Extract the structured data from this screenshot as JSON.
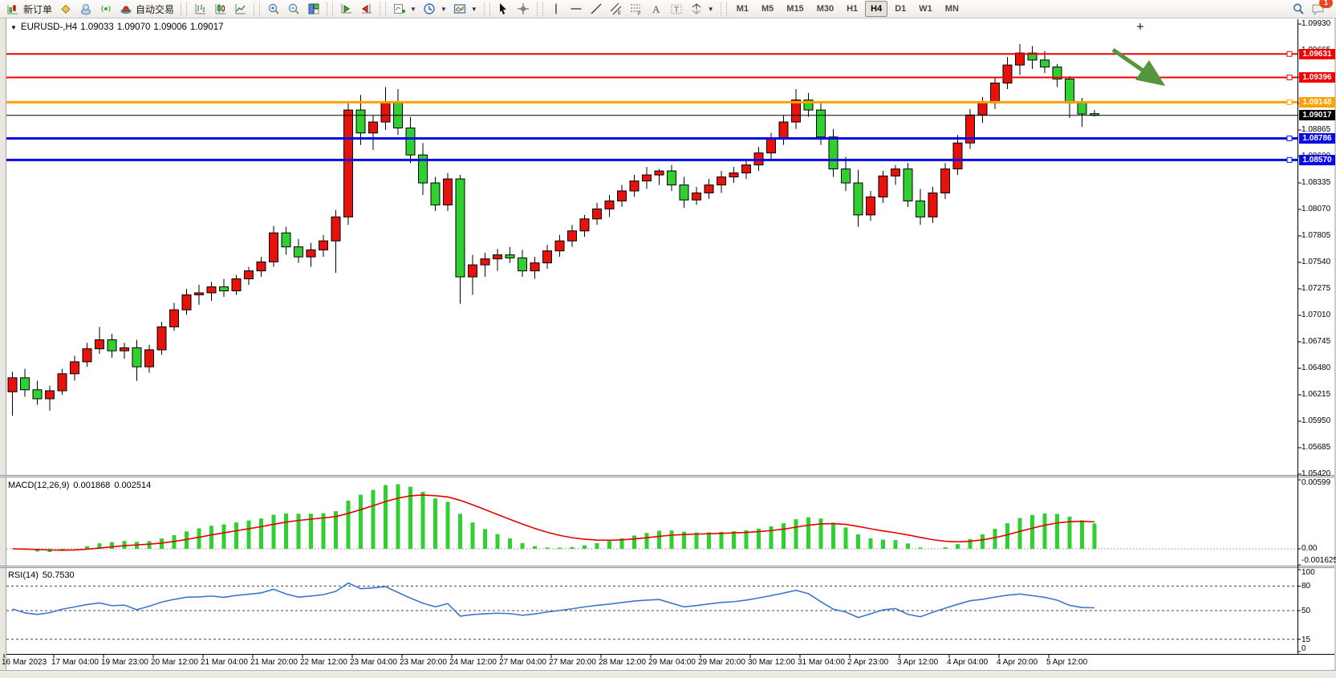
{
  "toolbar": {
    "new_order": "新订单",
    "auto_trading": "自动交易",
    "timeframes": [
      "M1",
      "M5",
      "M15",
      "M30",
      "H1",
      "H4",
      "D1",
      "W1",
      "MN"
    ],
    "active_timeframe": "H4",
    "notification_badge": "1",
    "icon_names": [
      "new-order-chart-icon",
      "market-watch-icon",
      "navigator-icon",
      "signals-icon",
      "autotrading-hat-icon",
      "bar-chart-icon",
      "candlestick-chart-icon",
      "line-chart-icon",
      "zoom-in-icon",
      "zoom-out-icon",
      "tile-windows-icon",
      "auto-scroll-icon",
      "chart-shift-icon",
      "add-indicator-icon",
      "periods-icon",
      "template-icon",
      "cursor-icon",
      "crosshair-icon",
      "vertical-line-icon",
      "horizontal-line-icon",
      "trendline-icon",
      "equidistant-channel-icon",
      "fibonacci-icon",
      "text-icon",
      "text-label-icon",
      "arrows-icon",
      "search-icon",
      "chat-icon"
    ]
  },
  "chart": {
    "title": "EURUSD-,H4",
    "open": "1.09033",
    "high": "1.09070",
    "low": "1.09006",
    "close": "1.09017"
  },
  "chart_data": {
    "type": "candlestick",
    "symbol": "EURUSD-",
    "timeframe": "H4",
    "bull_color": "#e8120c",
    "bear_color": "#2fd02f",
    "wick_color": "#000000",
    "price_axis": {
      "max": 1.0993,
      "min": 1.0542,
      "tick_step": 0.00265,
      "ticks": [
        "1.09930",
        "1.09665",
        "1.09400",
        "1.09135",
        "1.08865",
        "1.08600",
        "1.08335",
        "1.08070",
        "1.07805",
        "1.07540",
        "1.07275",
        "1.07010",
        "1.06745",
        "1.06480",
        "1.06215",
        "1.05950",
        "1.05685",
        "1.05420"
      ]
    },
    "x_labels": [
      "16 Mar 2023",
      "17 Mar 04:00",
      "19 Mar 23:00",
      "20 Mar 12:00",
      "21 Mar 04:00",
      "21 Mar 20:00",
      "22 Mar 12:00",
      "23 Mar 04:00",
      "23 Mar 20:00",
      "24 Mar 12:00",
      "27 Mar 04:00",
      "27 Mar 20:00",
      "28 Mar 12:00",
      "29 Mar 04:00",
      "29 Mar 20:00",
      "30 Mar 12:00",
      "31 Mar 04:00",
      "2 Apr 23:00",
      "3 Apr 12:00",
      "4 Apr 04:00",
      "4 Apr 20:00",
      "5 Apr 12:00"
    ],
    "candles": [
      [
        1.0625,
        1.0645,
        1.0601,
        1.0639
      ],
      [
        1.0639,
        1.0648,
        1.062,
        1.0627
      ],
      [
        1.0627,
        1.0636,
        1.0612,
        1.0618
      ],
      [
        1.0618,
        1.0631,
        1.0606,
        1.0626
      ],
      [
        1.0626,
        1.0648,
        1.0622,
        1.0643
      ],
      [
        1.0643,
        1.0661,
        1.0636,
        1.0655
      ],
      [
        1.0655,
        1.0674,
        1.065,
        1.0668
      ],
      [
        1.0668,
        1.069,
        1.0663,
        1.0677
      ],
      [
        1.0677,
        1.0683,
        1.0659,
        1.0666
      ],
      [
        1.0666,
        1.0674,
        1.0658,
        1.0669
      ],
      [
        1.0669,
        1.0677,
        1.0636,
        1.065
      ],
      [
        1.065,
        1.0672,
        1.0644,
        1.0667
      ],
      [
        1.0667,
        1.0695,
        1.0662,
        1.069
      ],
      [
        1.069,
        1.0714,
        1.0686,
        1.0707
      ],
      [
        1.0707,
        1.0728,
        1.0702,
        1.0722
      ],
      [
        1.0722,
        1.0732,
        1.0712,
        1.0724
      ],
      [
        1.0724,
        1.0735,
        1.0716,
        1.073
      ],
      [
        1.073,
        1.0738,
        1.072,
        1.0726
      ],
      [
        1.0726,
        1.0742,
        1.0722,
        1.0738
      ],
      [
        1.0738,
        1.075,
        1.0732,
        1.0746
      ],
      [
        1.0746,
        1.076,
        1.074,
        1.0755
      ],
      [
        1.0755,
        1.0791,
        1.075,
        1.0784
      ],
      [
        1.0784,
        1.079,
        1.0762,
        1.077
      ],
      [
        1.077,
        1.0778,
        1.0754,
        1.076
      ],
      [
        1.076,
        1.0774,
        1.075,
        1.0767
      ],
      [
        1.0767,
        1.0782,
        1.076,
        1.0776
      ],
      [
        1.0776,
        1.0807,
        1.0744,
        1.08
      ],
      [
        1.08,
        1.0914,
        1.0792,
        1.0907
      ],
      [
        1.0907,
        1.0922,
        1.0872,
        1.0884
      ],
      [
        1.0884,
        1.0902,
        1.0867,
        1.0895
      ],
      [
        1.0895,
        1.093,
        1.0887,
        1.0914
      ],
      [
        1.0914,
        1.0928,
        1.0882,
        1.0889
      ],
      [
        1.0889,
        1.09,
        1.0854,
        1.0862
      ],
      [
        1.0862,
        1.0874,
        1.0822,
        1.0834
      ],
      [
        1.0834,
        1.084,
        1.0806,
        1.0812
      ],
      [
        1.0812,
        1.0844,
        1.0806,
        1.0838
      ],
      [
        1.0838,
        1.0842,
        1.0713,
        1.074
      ],
      [
        1.074,
        1.0762,
        1.0722,
        1.0752
      ],
      [
        1.0752,
        1.0764,
        1.074,
        1.0758
      ],
      [
        1.0758,
        1.0768,
        1.0746,
        1.0762
      ],
      [
        1.0762,
        1.077,
        1.0754,
        1.0759
      ],
      [
        1.0759,
        1.0767,
        1.074,
        1.0746
      ],
      [
        1.0746,
        1.076,
        1.0738,
        1.0754
      ],
      [
        1.0754,
        1.0772,
        1.0748,
        1.0766
      ],
      [
        1.0766,
        1.0782,
        1.076,
        1.0776
      ],
      [
        1.0776,
        1.0792,
        1.077,
        1.0786
      ],
      [
        1.0786,
        1.0802,
        1.078,
        1.0798
      ],
      [
        1.0798,
        1.0814,
        1.0792,
        1.0808
      ],
      [
        1.0808,
        1.0822,
        1.08,
        1.0816
      ],
      [
        1.0816,
        1.0832,
        1.081,
        1.0826
      ],
      [
        1.0826,
        1.0842,
        1.082,
        1.0836
      ],
      [
        1.0836,
        1.085,
        1.0828,
        1.0842
      ],
      [
        1.0842,
        1.0848,
        1.0832,
        1.0846
      ],
      [
        1.0846,
        1.0852,
        1.0826,
        1.0832
      ],
      [
        1.0832,
        1.084,
        1.0809,
        1.0817
      ],
      [
        1.0817,
        1.083,
        1.0812,
        1.0824
      ],
      [
        1.0824,
        1.0838,
        1.0818,
        1.0832
      ],
      [
        1.0832,
        1.0846,
        1.0824,
        1.084
      ],
      [
        1.084,
        1.085,
        1.0834,
        1.0844
      ],
      [
        1.0844,
        1.0858,
        1.0838,
        1.0852
      ],
      [
        1.0852,
        1.087,
        1.0846,
        1.0864
      ],
      [
        1.0864,
        1.0884,
        1.0858,
        1.0878
      ],
      [
        1.0878,
        1.0902,
        1.0872,
        1.0895
      ],
      [
        1.0895,
        1.0928,
        1.0888,
        1.0917
      ],
      [
        1.0917,
        1.0924,
        1.09,
        1.0907
      ],
      [
        1.0907,
        1.0914,
        1.0872,
        1.088
      ],
      [
        1.088,
        1.0888,
        1.084,
        1.0848
      ],
      [
        1.0848,
        1.086,
        1.0826,
        1.0834
      ],
      [
        1.0834,
        1.0847,
        1.079,
        1.0802
      ],
      [
        1.0802,
        1.0826,
        1.0796,
        1.082
      ],
      [
        1.082,
        1.0846,
        1.0814,
        1.0841
      ],
      [
        1.0841,
        1.0852,
        1.0832,
        1.0848
      ],
      [
        1.0848,
        1.0854,
        1.081,
        1.0816
      ],
      [
        1.0816,
        1.0828,
        1.0792,
        1.08
      ],
      [
        1.08,
        1.083,
        1.0794,
        1.0824
      ],
      [
        1.0824,
        1.0854,
        1.0818,
        1.0848
      ],
      [
        1.0848,
        1.0882,
        1.0842,
        1.0874
      ],
      [
        1.0874,
        1.0908,
        1.0868,
        1.0902
      ],
      [
        1.0902,
        1.092,
        1.0894,
        1.0914
      ],
      [
        1.0914,
        1.094,
        1.0908,
        1.0934
      ],
      [
        1.0934,
        1.096,
        1.0928,
        1.0952
      ],
      [
        1.0952,
        1.0973,
        1.0942,
        1.0964
      ],
      [
        1.0964,
        1.0971,
        1.0948,
        1.0957
      ],
      [
        1.0957,
        1.0966,
        1.0944,
        1.095
      ],
      [
        1.095,
        1.0953,
        1.093,
        1.0938
      ],
      [
        1.0938,
        1.0941,
        1.0899,
        1.0914
      ],
      [
        1.0914,
        1.0919,
        1.089,
        1.0903
      ],
      [
        1.09033,
        1.0907,
        1.09006,
        1.09017
      ]
    ],
    "levels": [
      {
        "price": 1.09631,
        "badge": "1.09631",
        "color": "#f00000",
        "width": 2
      },
      {
        "price": 1.09396,
        "badge": "1.09396",
        "color": "#f00000",
        "width": 2
      },
      {
        "price": 1.09148,
        "badge": "1.09148",
        "color": "#ffa200",
        "width": 3
      },
      {
        "price": 1.08786,
        "badge": "1.08786",
        "color": "#0a0ae6",
        "width": 3
      },
      {
        "price": 1.0857,
        "badge": "1.08570",
        "color": "#0a0ae6",
        "width": 3
      }
    ],
    "current_price": {
      "price": 1.09017,
      "badge": "1.09017",
      "color": "#000000"
    },
    "indicators": {
      "macd": {
        "label": "MACD(12,26,9)",
        "main_value": "0.001868",
        "signal_value": "0.002514",
        "axis_max": "0.00599",
        "axis_zero": "0.00",
        "axis_min": "-0.001625",
        "histogram_color": "#2fd02f",
        "signal_color": "#e60000"
      },
      "rsi": {
        "label": "RSI(14)",
        "value": "50.7530",
        "line_color": "#3c78c8",
        "levels": [
          80,
          50,
          15
        ],
        "axis_labels": [
          "100",
          "80",
          "50",
          "15",
          "0"
        ]
      }
    },
    "annotation": {
      "type": "arrow",
      "direction": "down-right",
      "color": "#55953b",
      "from_price": 1.0963,
      "to_price": 1.0934
    }
  }
}
